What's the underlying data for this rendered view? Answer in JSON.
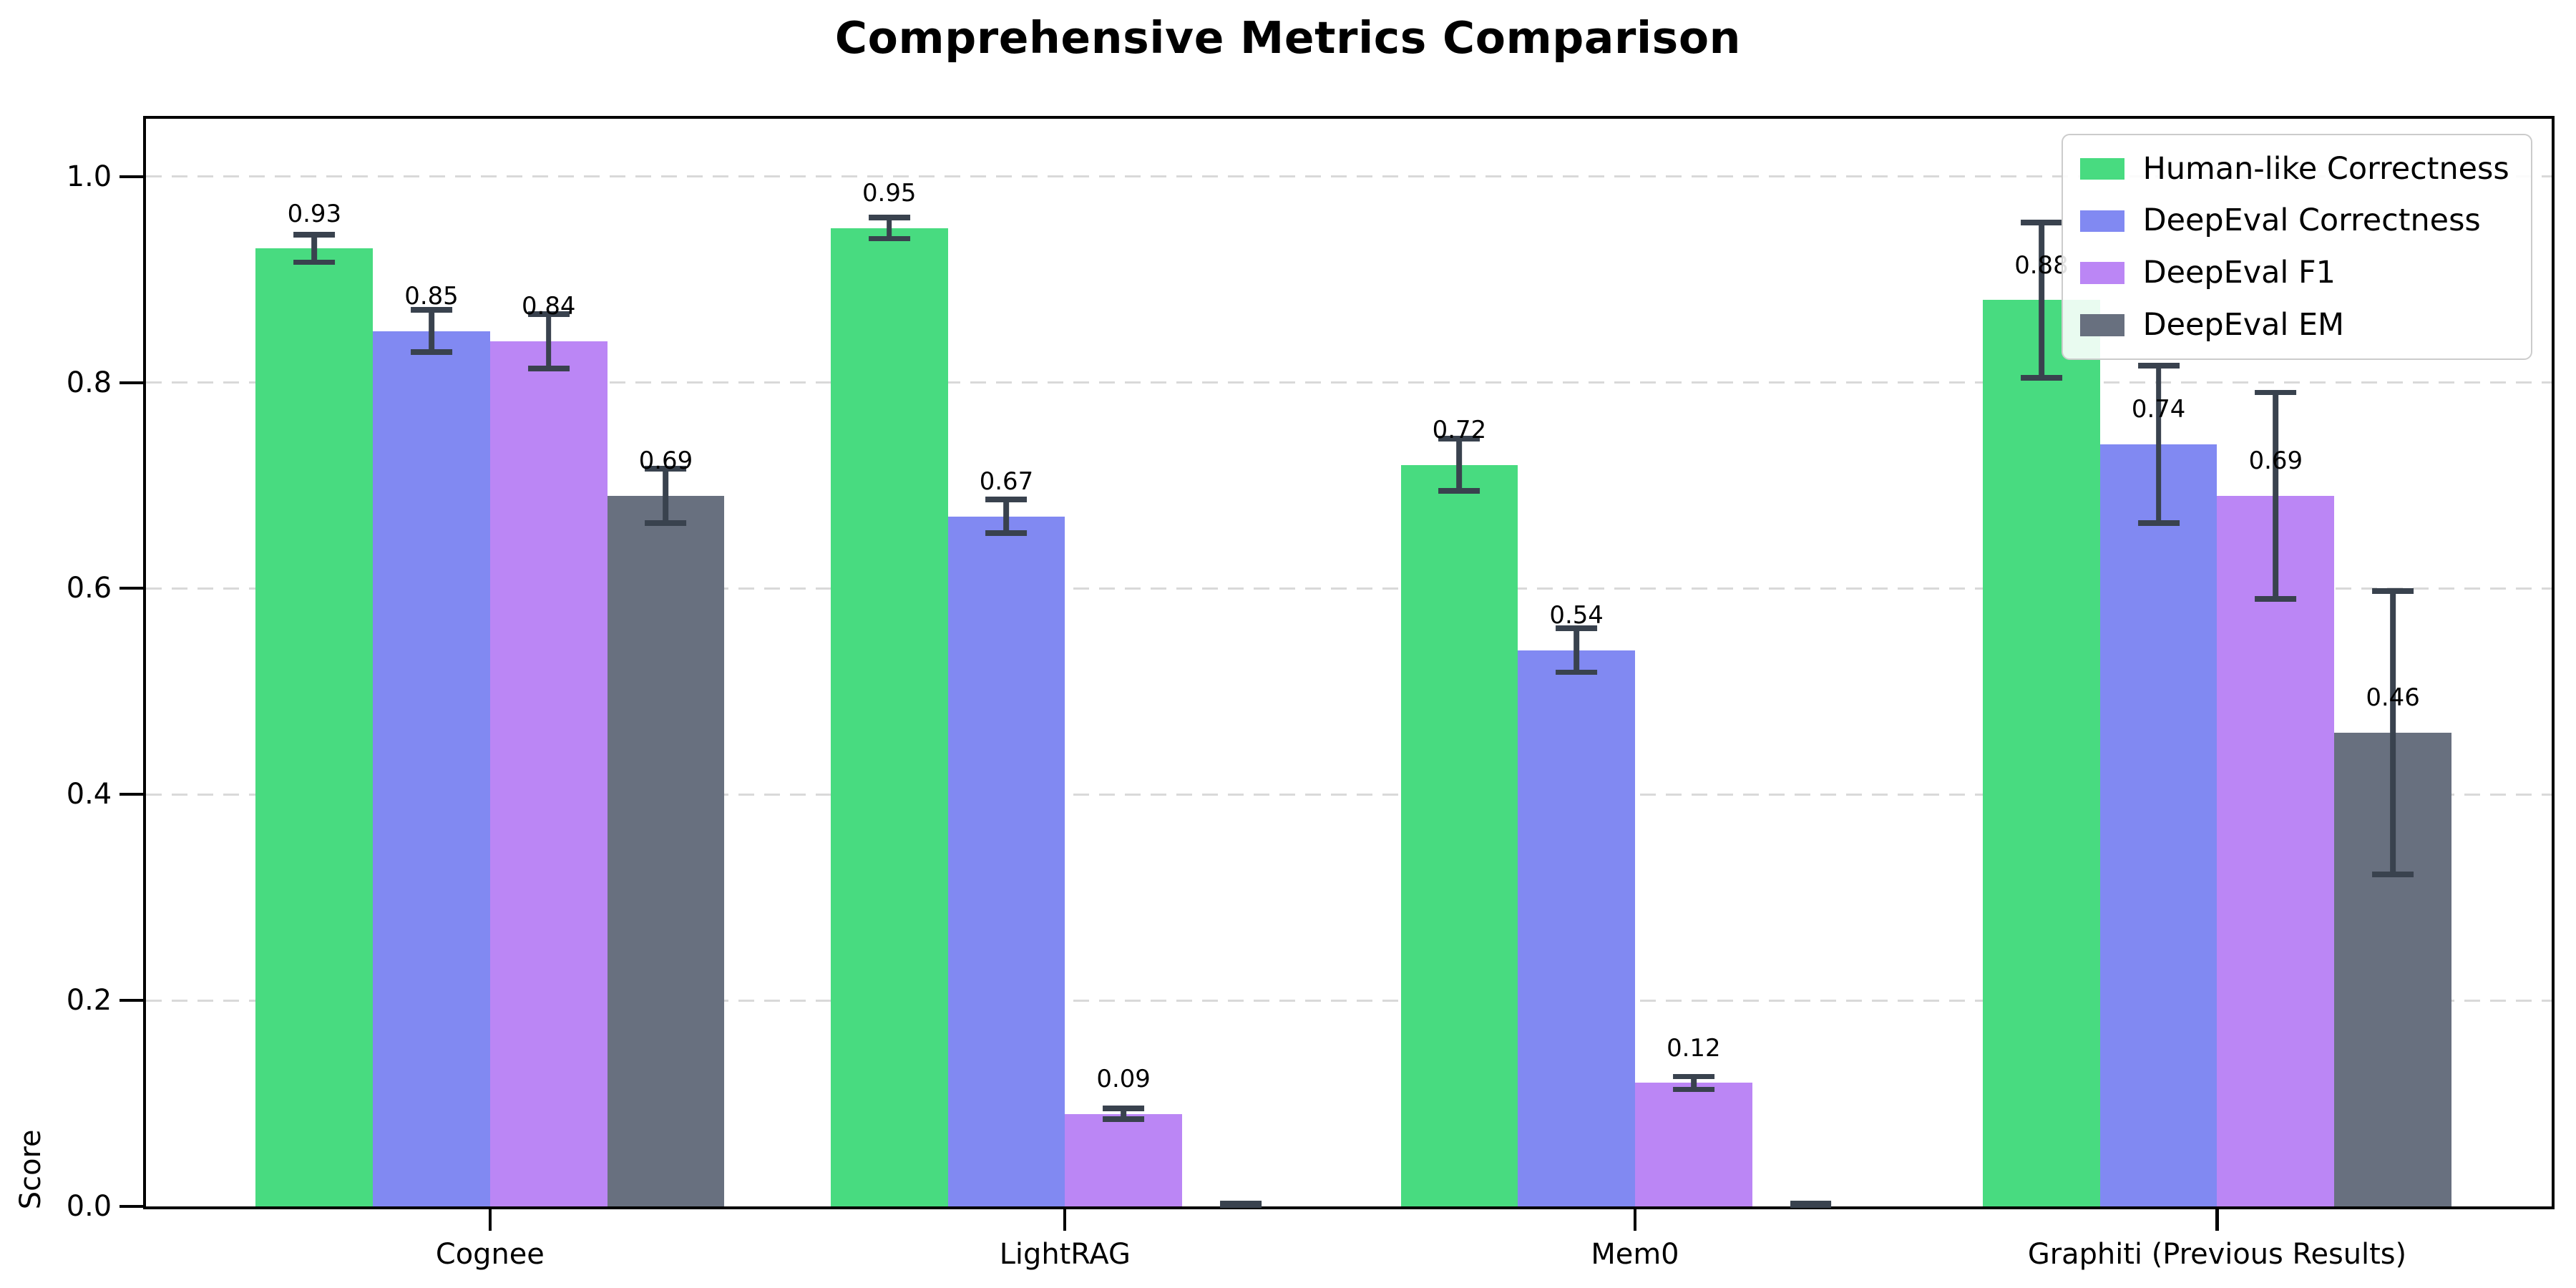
{
  "figure": {
    "title": "Comprehensive Metrics Comparison"
  },
  "chart_data": {
    "type": "bar",
    "title": "Comprehensive Metrics Comparison",
    "xlabel": "",
    "ylabel": "Score",
    "categories": [
      "Cognee",
      "LightRAG",
      "Mem0",
      "Graphiti (Previous Results)"
    ],
    "series": [
      {
        "name": "Human-like Correctness",
        "color": "#48DB80",
        "values": [
          0.93,
          0.95,
          0.72,
          0.88
        ],
        "errors": [
          0.016,
          0.013,
          0.028,
          0.078
        ],
        "labels": [
          "0.93",
          "0.95",
          "0.72",
          "0.88"
        ]
      },
      {
        "name": "DeepEval Correctness",
        "color": "#8189F2",
        "values": [
          0.85,
          0.67,
          0.54,
          0.74
        ],
        "errors": [
          0.023,
          0.019,
          0.024,
          0.079
        ],
        "labels": [
          "0.85",
          "0.67",
          "0.54",
          "0.74"
        ]
      },
      {
        "name": "DeepEval F1",
        "color": "#BB86F5",
        "values": [
          0.84,
          0.09,
          0.12,
          0.69
        ],
        "errors": [
          0.029,
          0.008,
          0.009,
          0.103
        ],
        "labels": [
          "0.84",
          "0.09",
          "0.12",
          "0.69"
        ]
      },
      {
        "name": "DeepEval EM",
        "color": "#68707F",
        "values": [
          0.69,
          0.0,
          0.0,
          0.46
        ],
        "errors": [
          0.029,
          0.004,
          0.004,
          0.14
        ],
        "labels": [
          "0.69",
          null,
          null,
          "0.46"
        ]
      }
    ],
    "ylim": [
      0,
      1.056
    ],
    "yticks": {
      "values": [
        0.0,
        0.2,
        0.4,
        0.6,
        0.8,
        1.0
      ],
      "labels": [
        "0.0",
        "0.2",
        "0.4",
        "0.6",
        "0.8",
        "1.0"
      ]
    },
    "grid": "horizontal-dashed",
    "legend_position": "upper-right",
    "colors": {
      "error_bar": "#39424E",
      "grid": "#D9D9D9",
      "spine": "#000000",
      "background": "#FFFFFF"
    },
    "layout": {
      "group_centers_pct": [
        14.3,
        38.2,
        61.9,
        86.1
      ],
      "bar_width_pct": 4.87,
      "value_label_offset_data": 0.022
    }
  }
}
